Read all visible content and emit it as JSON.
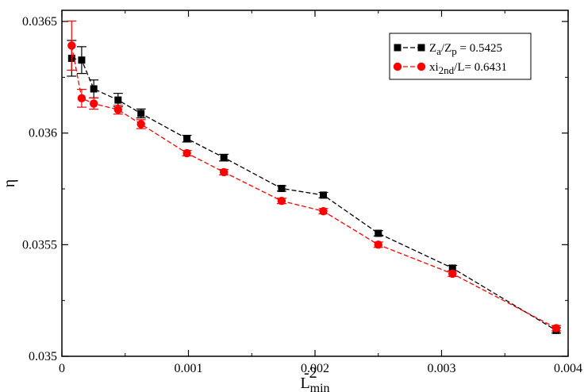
{
  "chart_data": {
    "type": "line",
    "xlabel": "L",
    "xlabel_sup": "-2",
    "xlabel_sub": "min",
    "ylabel": "η",
    "xlim": [
      0,
      0.004
    ],
    "ylim": [
      0.035,
      0.03655
    ],
    "x_ticks": [
      0,
      0.001,
      0.002,
      0.003,
      0.004
    ],
    "x_tick_labels": [
      "0",
      "0.001",
      "0.002",
      "0.003",
      "0.004"
    ],
    "y_ticks": [
      0.035,
      0.0355,
      0.036,
      0.0365
    ],
    "y_tick_labels": [
      "0.035",
      "0.0355",
      "0.036",
      "0.0365"
    ],
    "legend_position": "top-right",
    "series": [
      {
        "name": "Za/Zp = 0.5425",
        "legend_parts": [
          "Z",
          "a",
          "/Z",
          "p",
          " = 0.5425"
        ],
        "color": "#000000",
        "marker": "square",
        "line_style": "dashed",
        "x": [
          7.72e-05,
          0.0001563,
          0.000252,
          0.000444,
          0.000625,
          0.000988,
          0.00128,
          0.001736,
          0.002066,
          0.0025,
          0.003086,
          0.003906
        ],
        "y": [
          0.036335,
          0.036327,
          0.036198,
          0.036148,
          0.036088,
          0.035975,
          0.03589,
          0.035752,
          0.035722,
          0.035551,
          0.035395,
          0.035116
        ],
        "err": [
          8e-05,
          6e-05,
          4e-05,
          3e-05,
          2e-05,
          1.5e-05,
          1.5e-05,
          1.2e-05,
          1.2e-05,
          1.2e-05,
          1.2e-05,
          1.2e-05
        ]
      },
      {
        "name": "xi2nd/L= 0.6431",
        "legend_parts": [
          "xi",
          "2nd",
          "/L= 0.6431",
          "",
          ""
        ],
        "color": "#ff0000",
        "marker": "circle",
        "line_style": "dashed",
        "x": [
          7.72e-05,
          0.0001563,
          0.000252,
          0.000444,
          0.000625,
          0.000988,
          0.00128,
          0.001736,
          0.002066,
          0.0025,
          0.003086,
          0.003906
        ],
        "y": [
          0.036392,
          0.036156,
          0.036132,
          0.036105,
          0.03604,
          0.03591,
          0.035825,
          0.035696,
          0.03565,
          0.0355,
          0.03537,
          0.035126
        ],
        "err": [
          0.00011,
          4e-05,
          2.5e-05,
          2e-05,
          2e-05,
          1.2e-05,
          1.2e-05,
          1.2e-05,
          1.2e-05,
          1.2e-05,
          1.2e-05,
          1.2e-05
        ]
      }
    ]
  }
}
